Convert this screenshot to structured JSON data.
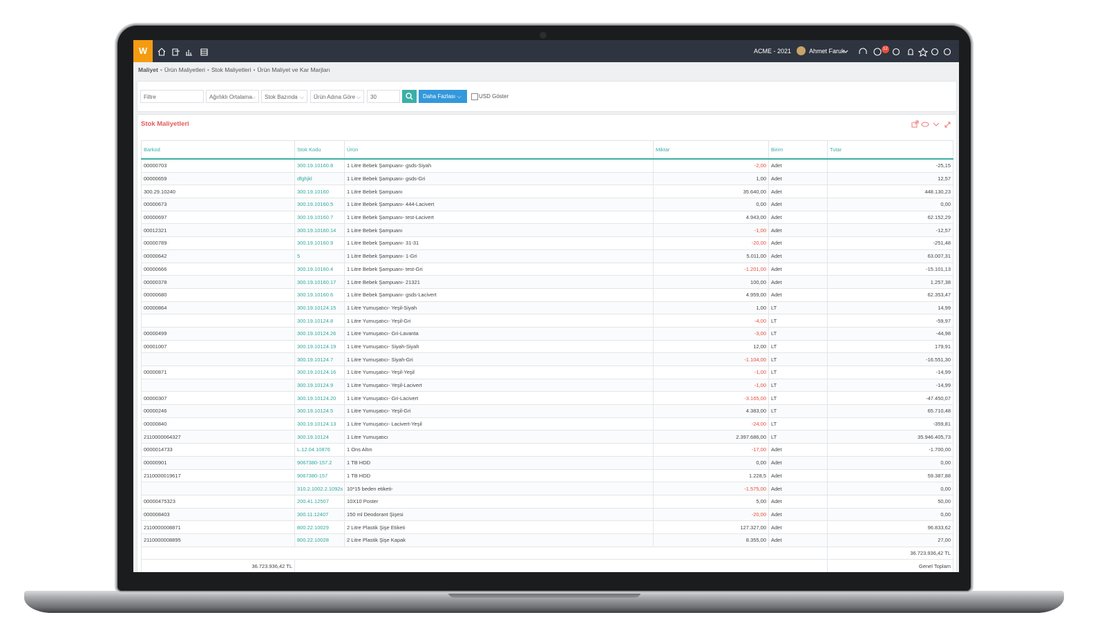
{
  "topbar": {
    "logo": "W",
    "company": "ACME - 2021",
    "user": "Ahmet Faruk",
    "badge": "12"
  },
  "breadcrumb": [
    "Maliyet",
    "Ürün Maliyetleri",
    "Stok Maliyetleri",
    "Ürün Maliyet ve Kar Marjları"
  ],
  "filters": {
    "search_placeholder": "Filtre",
    "selects": [
      "Ağırlıklı Ortalama",
      "Stok Bazında",
      "Ürün Adına Göre"
    ],
    "count": "30",
    "more_button": "Daha Fazlası",
    "checkbox": "USD Göster"
  },
  "panel": {
    "title": "Stok Maliyetleri"
  },
  "table": {
    "columns": [
      "Barkod",
      "Stok Kodu",
      "Ürün",
      "Miktar",
      "Birim",
      "Tutar"
    ],
    "rows": [
      [
        "00000703",
        "300.19.10160.8",
        "1 Litre Bebek Şampuanı- gsds-Siyah",
        "-2,00",
        "Adet",
        "-25,15"
      ],
      [
        "00000659",
        "dfghjkl",
        "1 Litre Bebek Şampuanı- gsds-Gri",
        "1,00",
        "Adet",
        "12,57"
      ],
      [
        "300.29.10240",
        "300.19.10160",
        "1 Litre Bebek Şampuanı",
        "35.640,00",
        "Adet",
        "448.130,23"
      ],
      [
        "00000673",
        "300.19.10160.5",
        "1 Litre Bebek Şampuanı- 444-Lacivert",
        "0,00",
        "Adet",
        "0,00"
      ],
      [
        "00000697",
        "300.19.10160.7",
        "1 Litre Bebek Şampuanı- test-Lacivert",
        "4.943,00",
        "Adet",
        "62.152,29"
      ],
      [
        "00012321",
        "300.19.10160.14",
        "1 Litre Bebek Şampuanı",
        "-1,00",
        "Adet",
        "-12,57"
      ],
      [
        "00000789",
        "300.19.10160.9",
        "1 Litre Bebek Şampuanı- 31-31",
        "-20,00",
        "Adet",
        "-251,48"
      ],
      [
        "00000642",
        "5",
        "1 Litre Bebek Şampuanı- 1-Gri",
        "5.011,00",
        "Adet",
        "63.007,31"
      ],
      [
        "00000666",
        "300.19.10160.4",
        "1 Litre Bebek Şampuanı- test-Gri",
        "-1.201,00",
        "Adet",
        "-15.101,13"
      ],
      [
        "00000378",
        "300.19.10160.17",
        "1 Litre Bebek Şampuanı- 21321",
        "100,00",
        "Adet",
        "1.257,38"
      ],
      [
        "00000680",
        "300.19.10160.6",
        "1 Litre Bebek Şampuanı- gsds-Lacivert",
        "4.959,00",
        "Adet",
        "62.353,47"
      ],
      [
        "00000864",
        "300.19.10124.15",
        "1 Litre Yumuşatıcı- Yeşil-Siyah",
        "1,00",
        "LT",
        "14,99"
      ],
      [
        null,
        "300.19.10124.8",
        "1 Litre Yumuşatıcı- Yeşil-Gri",
        "-4,00",
        "LT",
        "-59,97"
      ],
      [
        "00000499",
        "300.19.10124.26",
        "1 Litre Yumuşatıcı- Gri-Lavanta",
        "-3,00",
        "LT",
        "-44,98"
      ],
      [
        "00001007",
        "300.19.10124.19",
        "1 Litre Yumuşatıcı- Siyah-Siyah",
        "12,00",
        "LT",
        "179,91"
      ],
      [
        null,
        "300.19.10124.7",
        "1 Litre Yumuşatıcı- Siyah-Gri",
        "-1.104,00",
        "LT",
        "-16.551,30"
      ],
      [
        "00000871",
        "300.19.10124.16",
        "1 Litre Yumuşatıcı- Yeşil-Yeşil",
        "-1,00",
        "LT",
        "-14,99"
      ],
      [
        null,
        "300.19.10124.9",
        "1 Litre Yumuşatıcı- Yeşil-Lacivert",
        "-1,00",
        "LT",
        "-14,99"
      ],
      [
        "00000307",
        "300.19.10124.20",
        "1 Litre Yumuşatıcı- Gri-Lacivert",
        "-3.165,00",
        "LT",
        "-47.450,07"
      ],
      [
        "00000246",
        "300.19.10124.5",
        "1 Litre Yumuşatıcı- Yeşil-Gri",
        "4.383,00",
        "LT",
        "65.710,48"
      ],
      [
        "00000840",
        "300.19.10124.13",
        "1 Litre Yumuşatıcı- Lacivert-Yeşil",
        "-24,00",
        "LT",
        "-359,81"
      ],
      [
        "2110000064327",
        "300.19.10124",
        "1 Litre Yumuşatıcı",
        "2.397.686,00",
        "LT",
        "35.946.405,73"
      ],
      [
        "0000014733",
        "L.12.04.10876",
        "1 Ons Altın",
        "-17,00",
        "Adet",
        "-1.700,00"
      ],
      [
        "00000901",
        "9067380-157.2",
        "1 TB HDD",
        "0,00",
        "Adet",
        "0,00"
      ],
      [
        "2110000019617",
        "9067380-157",
        "1 TB HDD",
        "1.228,5",
        "Adet",
        "59.387,88"
      ],
      [
        null,
        "310.2.1002.2.1092s",
        "10*15 beden etiketi-",
        "-1.575,00",
        "Adet",
        "0,00"
      ],
      [
        "00000475323",
        "200.41.12507",
        "10X10 Poster",
        "5,00",
        "Adet",
        "50,00"
      ],
      [
        "000008403",
        "300.11.12407",
        "150 ml Deodorant Şişesi",
        "-20,00",
        "Adet",
        "0,00"
      ],
      [
        "2110000008871",
        "800.22.10029",
        "2 Litre Plastik Şişe Etiketi",
        "127.327,00",
        "Adet",
        "96.833,62"
      ],
      [
        "2110000008895",
        "800.22.10028",
        "2 Litre Plastik Şişe Kapak",
        "8.355,00",
        "Adet",
        "27,00"
      ]
    ]
  },
  "footer": {
    "total": "36.723.936,42 TL",
    "grand_total_left": "36.723.936,42 TL",
    "grand_total_label": "Genel Toplam"
  }
}
